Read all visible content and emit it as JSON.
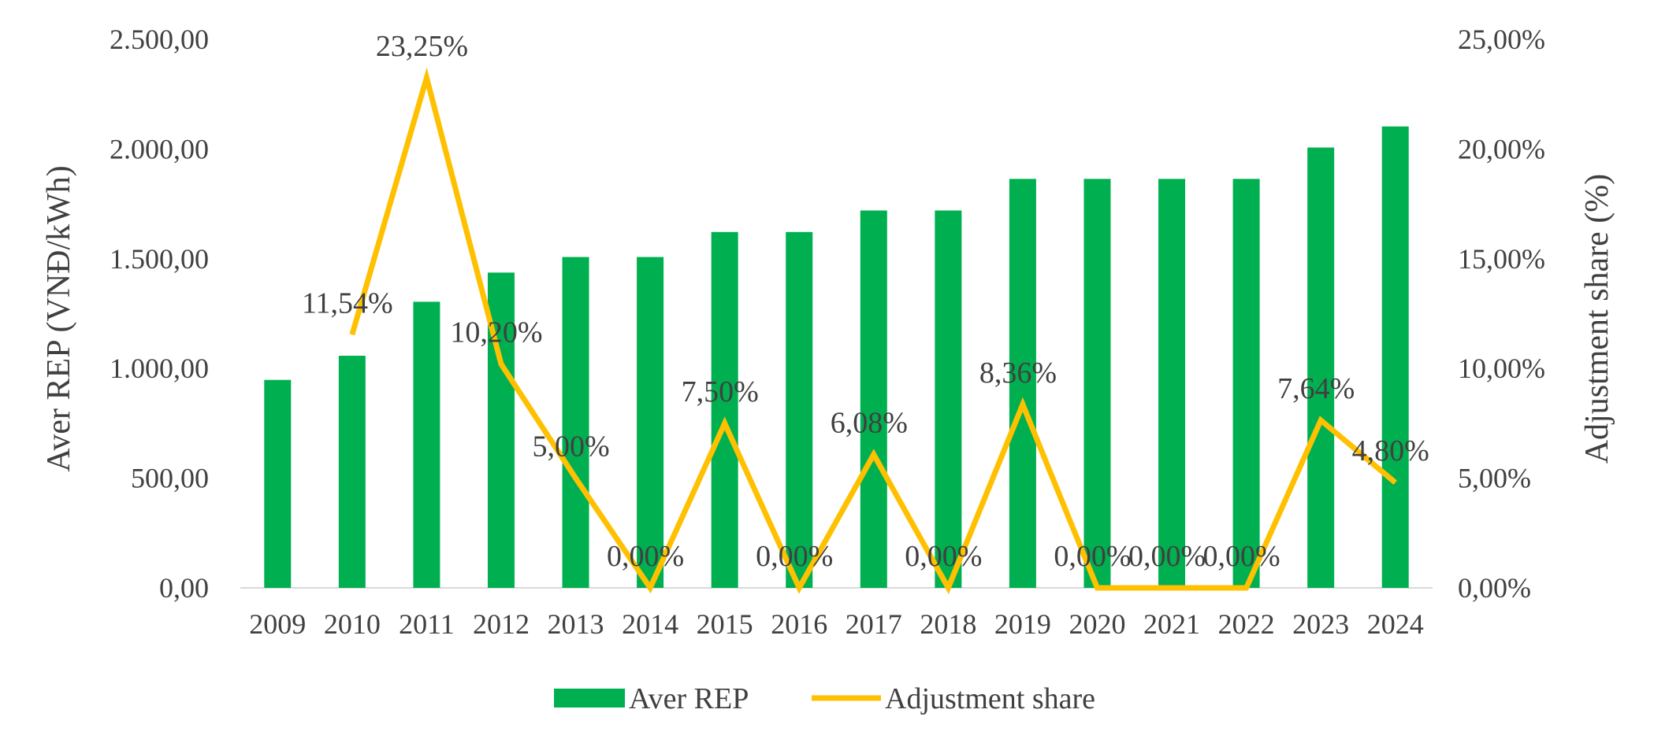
{
  "chart_data": {
    "type": "bar",
    "categories": [
      "2009",
      "2010",
      "2011",
      "2012",
      "2013",
      "2014",
      "2015",
      "2016",
      "2017",
      "2018",
      "2019",
      "2020",
      "2021",
      "2022",
      "2023",
      "2024"
    ],
    "series": [
      {
        "name": "Aver REP",
        "type": "bar",
        "axis": "left",
        "color": "#00B050",
        "values": [
          948,
          1058,
          1304,
          1437,
          1508,
          1508,
          1622,
          1622,
          1720,
          1720,
          1864,
          1864,
          1864,
          1864,
          2007,
          2103
        ]
      },
      {
        "name": "Adjustment share",
        "type": "line",
        "axis": "right",
        "color": "#FFC000",
        "values": [
          null,
          11.54,
          23.25,
          10.2,
          5.0,
          0.0,
          7.5,
          0.0,
          6.08,
          0.0,
          8.36,
          0.0,
          0.0,
          0.0,
          7.64,
          4.8
        ],
        "labels": [
          null,
          "11,54%",
          "23,25%",
          "10,20%",
          "5,00%",
          "0,00%",
          "7,50%",
          "0,00%",
          "6,08%",
          "0,00%",
          "8,36%",
          "0,00%",
          "0,00%",
          "0,00%",
          "7,64%",
          "4,80%"
        ]
      }
    ],
    "ylabel": "Aver REP (VNĐ/kWh)",
    "y2label": "Adjustment share (%)",
    "ylim": [
      0,
      2500
    ],
    "y2lim": [
      0,
      25
    ],
    "yticks": [
      "0,00",
      "500,00",
      "1.000,00",
      "1.500,00",
      "2.000,00",
      "2.500,00"
    ],
    "y2ticks": [
      "0,00%",
      "5,00%",
      "10,00%",
      "15,00%",
      "20,00%",
      "25,00%"
    ],
    "grid": false,
    "legend_position": "bottom"
  }
}
